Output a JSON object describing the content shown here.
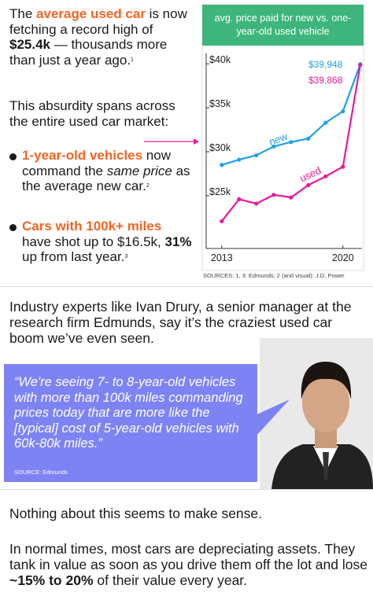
{
  "intro": [
    "The ",
    "average used car",
    " is now fetching a record high of ",
    "$25.4k",
    " — thousands more than just a year ago.",
    "1"
  ],
  "market": "This absurdity spans across the entire used car market:",
  "bullets": [
    [
      "1-year-old vehicles",
      " now command the ",
      "same price",
      " as the average new car.",
      "2"
    ],
    [
      "Cars with 100k+ miles",
      " have shot up to $16.5k, ",
      "31%",
      " up from last year.",
      "3"
    ]
  ],
  "chart_data": {
    "type": "line",
    "title": "avg. price paid for new vs. one-year-old used vehicle",
    "x": [
      2013,
      2014,
      2015,
      2016,
      2017,
      2018,
      2019,
      2020,
      2021
    ],
    "series": [
      {
        "name": "new",
        "color": "#1ea0e6",
        "values": [
          28.5,
          29.1,
          29.6,
          30.6,
          31.1,
          31.5,
          33.3,
          34.6,
          39.948
        ]
      },
      {
        "name": "used",
        "color": "#e8199c",
        "values": [
          22.1,
          24.6,
          24.1,
          25.1,
          24.8,
          26.2,
          27.2,
          28.3,
          39.868
        ]
      }
    ],
    "xlim": [
      2012.1,
      2021.1
    ],
    "xticks": [
      2013,
      2020
    ],
    "ylim": [
      19,
      41
    ],
    "yticks": [
      {
        "value": 25,
        "label": "$25k"
      },
      {
        "value": 30,
        "label": "$30k"
      },
      {
        "value": 35,
        "label": "$35k"
      },
      {
        "value": 40,
        "label": "$40k"
      }
    ],
    "annotations": [
      "$39,948",
      "$39,868"
    ],
    "source": "SOURCES: 1, 3: Edmunds; 2 (and visual): J.D. Power"
  },
  "experts": "Industry experts like Ivan Drury, a senior manager at the research firm Edmunds, say it’s the craziest used car boom we’ve even seen.",
  "quote": {
    "text": "“We're seeing 7- to 8-year-old vehicles with more than 100k miles commanding prices today that are more like the [typical] cost of 5-year-old vehicles with 60k-80k miles.”",
    "source": "SOURCE: Edmunds"
  },
  "nothing": "Nothing about this seems to make sense.",
  "normal": [
    "In normal times, most cars are depreciating assets. They tank in value as soon as you drive them off the lot and lose ",
    "~15% to 20%",
    " of their value every year."
  ]
}
